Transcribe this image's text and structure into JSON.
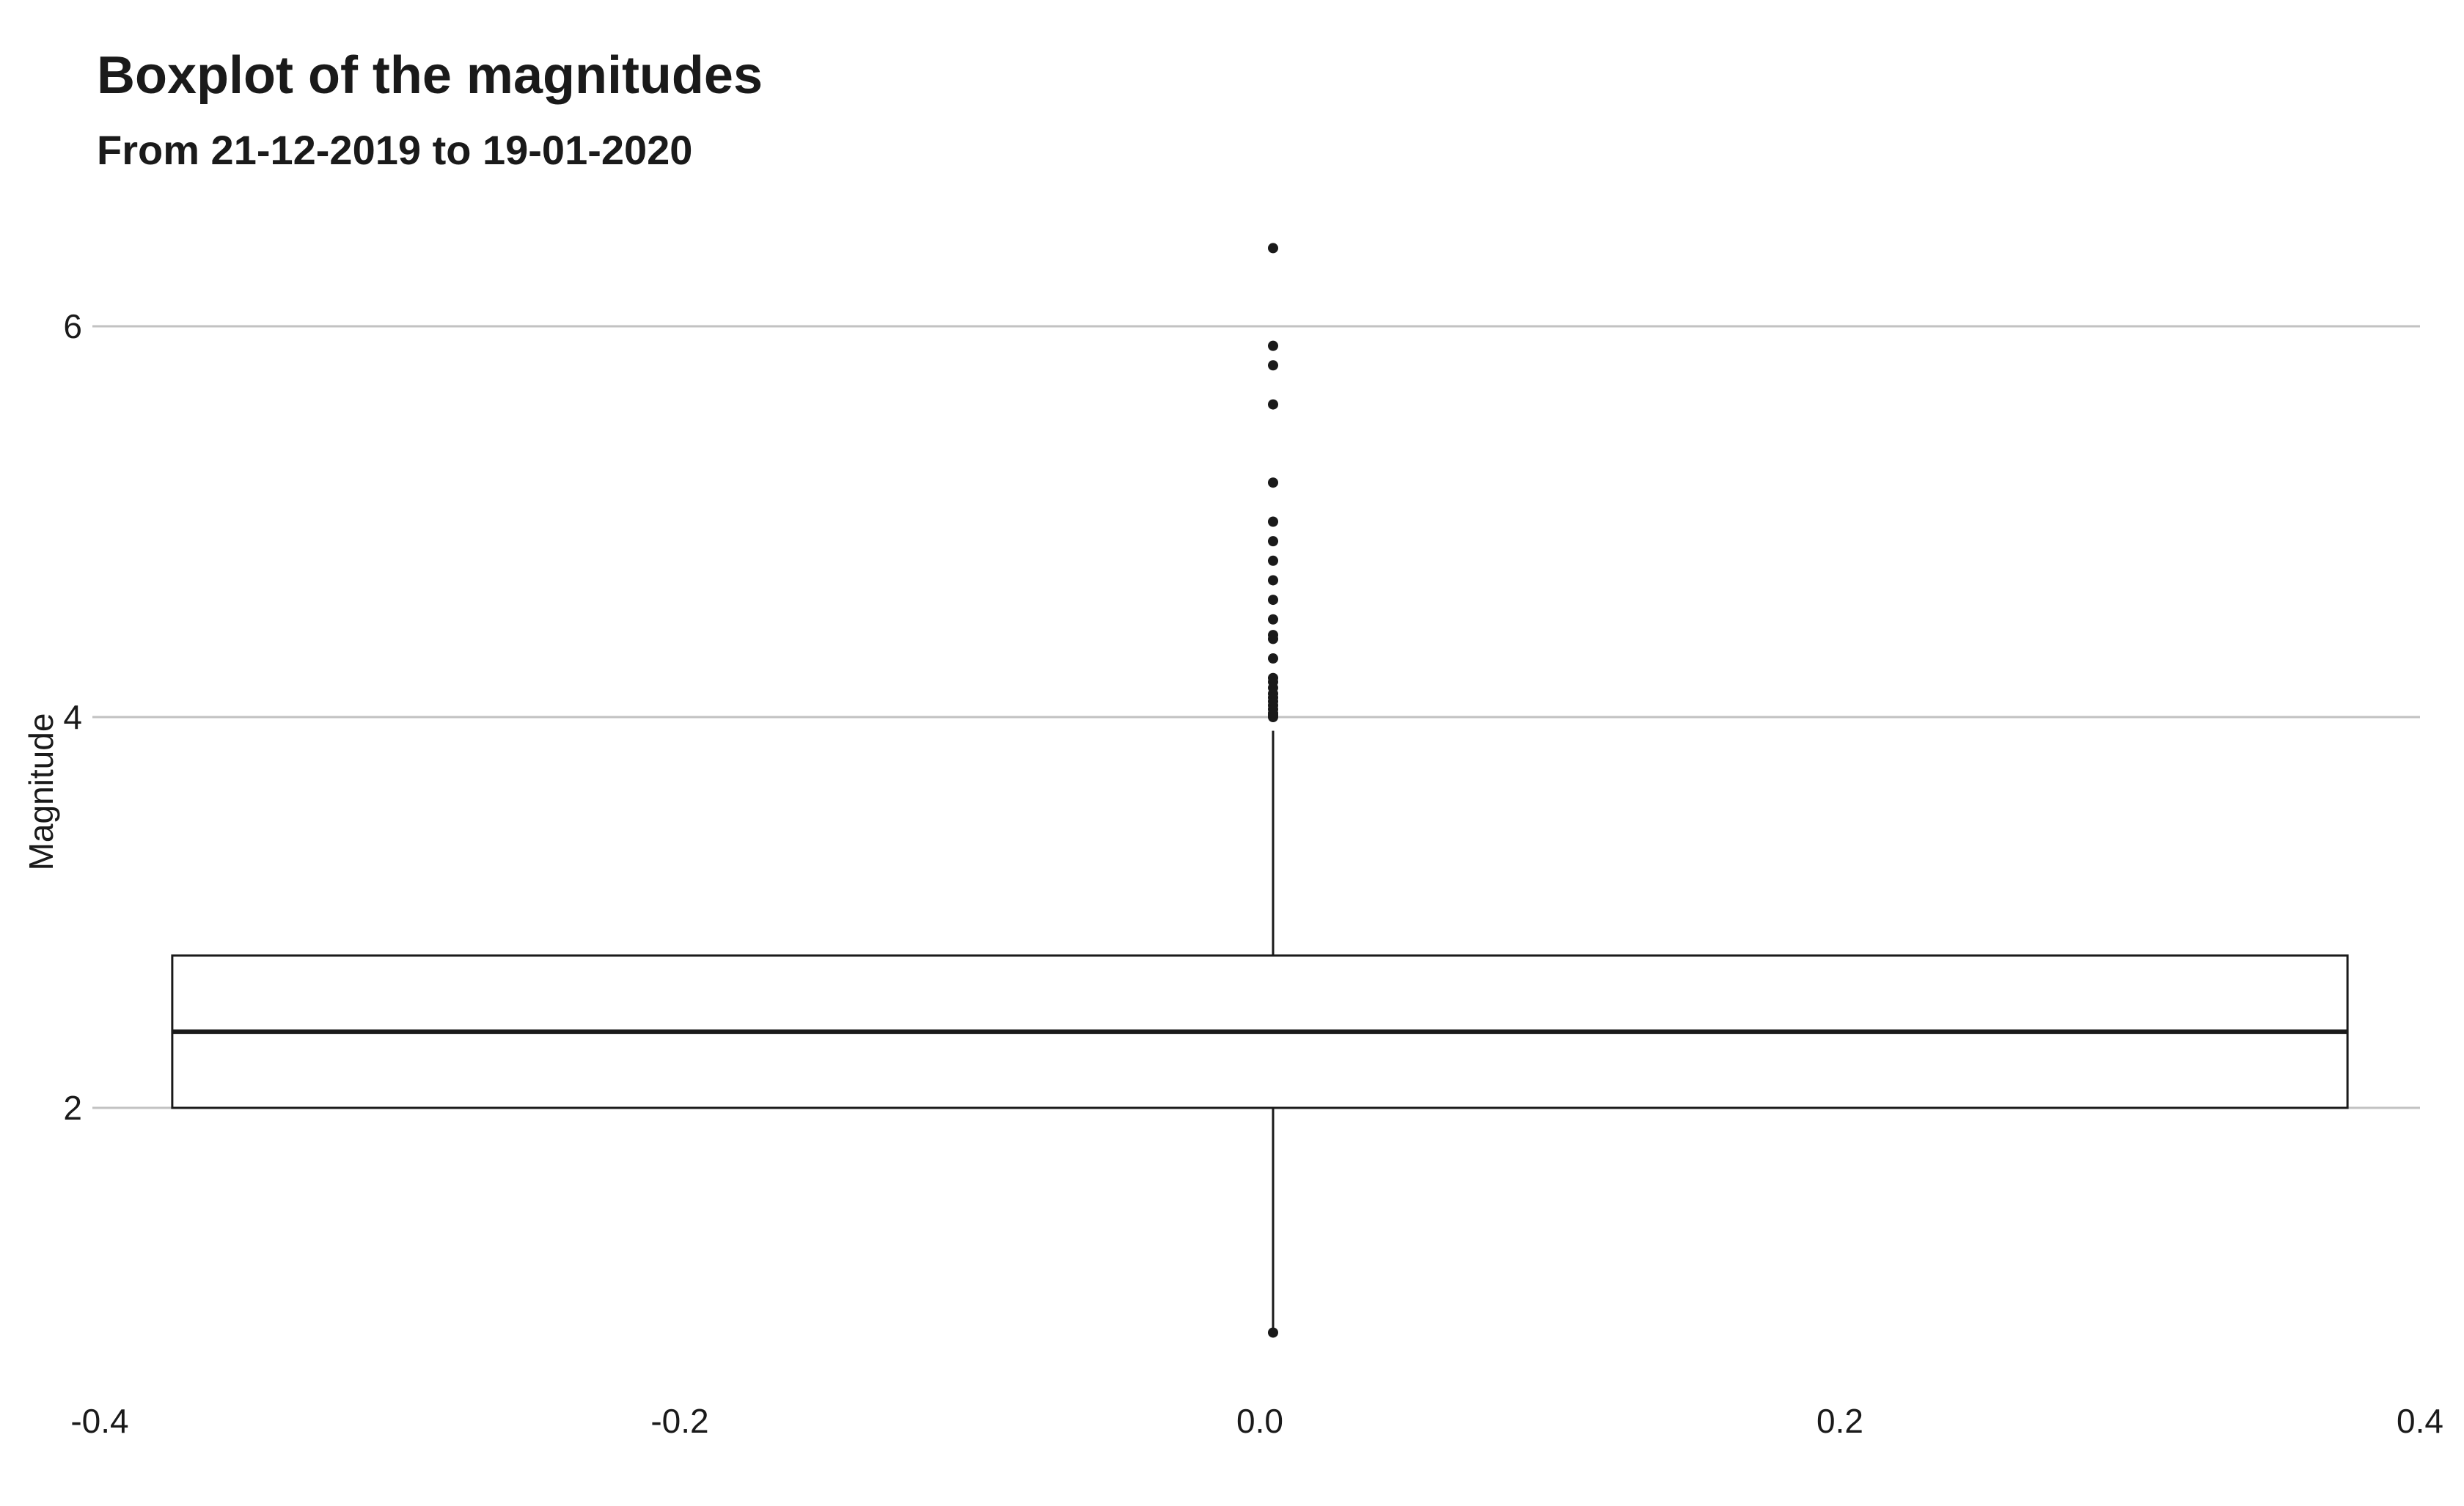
{
  "chart_data": {
    "type": "boxplot",
    "title": "Boxplot of the magnitudes",
    "subtitle": "From 21-12-2019 to 19-01-2020",
    "xlabel": "",
    "ylabel": "Magnitude",
    "xlim": [
      -0.4,
      0.4
    ],
    "ylim": [
      0.8,
      6.5
    ],
    "x_ticks": [
      "-0.4",
      "-0.2",
      "0.0",
      "0.2",
      "0.4"
    ],
    "y_ticks": [
      "2",
      "4",
      "6"
    ],
    "grid": "horizontal",
    "box": {
      "x_center": 0.0,
      "x_left": -0.375,
      "x_right": 0.375,
      "q1": 2.0,
      "median": 2.39,
      "q3": 2.78,
      "whisker_low": 2.0,
      "whisker_high": 3.93
    },
    "outliers": [
      0.85,
      4.0,
      4.01,
      4.02,
      4.04,
      4.06,
      4.08,
      4.1,
      4.12,
      4.15,
      4.18,
      4.2,
      4.3,
      4.4,
      4.42,
      4.5,
      4.6,
      4.7,
      4.8,
      4.9,
      5.0,
      5.2,
      5.6,
      5.8,
      5.9,
      6.4
    ]
  }
}
